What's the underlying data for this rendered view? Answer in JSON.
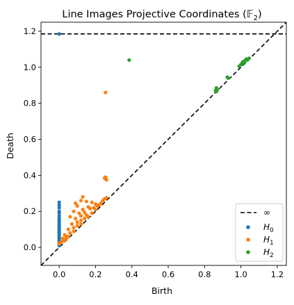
{
  "chart_data": {
    "type": "scatter",
    "title": "Line Images Projective Coordinates (ᵓf₂)",
    "title_parts": {
      "main": "Line Images Projective Coordinates (",
      "field_symbol": "𝔽",
      "field_subscript": "2",
      "close": ")"
    },
    "xlabel": "Birth",
    "ylabel": "Death",
    "xlim": [
      -0.1,
      1.25
    ],
    "ylim": [
      -0.1,
      1.25
    ],
    "xticks": [
      0.0,
      0.2,
      0.4,
      0.6,
      0.8,
      1.0,
      1.2
    ],
    "yticks": [
      0.0,
      0.2,
      0.4,
      0.6,
      0.8,
      1.0,
      1.2
    ],
    "xtick_labels": [
      "0.0",
      "0.2",
      "0.4",
      "0.6",
      "0.8",
      "1.0",
      "1.2"
    ],
    "ytick_labels": [
      "0.0",
      "0.2",
      "0.4",
      "0.6",
      "0.8",
      "1.0",
      "1.2"
    ],
    "grid": false,
    "legend_position": "lower-right",
    "infinity_line": {
      "label": "∞",
      "y": 1.185,
      "color": "#000000",
      "style": "dashed"
    },
    "diagonal_line": {
      "style": "dashed",
      "color": "#000000"
    },
    "series": [
      {
        "name": "H",
        "subscript": "0",
        "color": "#1f77b4",
        "points": [
          [
            0.0,
            1.185
          ],
          [
            0.0,
            0.25
          ],
          [
            0.0,
            0.235
          ],
          [
            0.0,
            0.22
          ],
          [
            0.0,
            0.2
          ],
          [
            0.0,
            0.19
          ],
          [
            0.0,
            0.175
          ],
          [
            0.0,
            0.16
          ],
          [
            0.0,
            0.15
          ],
          [
            0.0,
            0.14
          ],
          [
            0.0,
            0.13
          ],
          [
            0.0,
            0.12
          ],
          [
            0.0,
            0.11
          ],
          [
            0.0,
            0.1
          ],
          [
            0.0,
            0.09
          ],
          [
            0.0,
            0.08
          ],
          [
            0.0,
            0.07
          ],
          [
            0.0,
            0.06
          ],
          [
            0.0,
            0.05
          ],
          [
            0.0,
            0.04
          ],
          [
            0.0,
            0.03
          ],
          [
            0.0,
            0.02
          ],
          [
            0.0,
            0.01
          ]
        ]
      },
      {
        "name": "H",
        "subscript": "1",
        "color": "#ff7f0e",
        "points": [
          [
            0.255,
            0.86
          ],
          [
            0.255,
            0.39
          ],
          [
            0.255,
            0.38
          ],
          [
            0.26,
            0.375
          ],
          [
            0.25,
            0.385
          ],
          [
            0.13,
            0.28
          ],
          [
            0.12,
            0.26
          ],
          [
            0.15,
            0.255
          ],
          [
            0.18,
            0.25
          ],
          [
            0.09,
            0.245
          ],
          [
            0.1,
            0.23
          ],
          [
            0.16,
            0.225
          ],
          [
            0.2,
            0.24
          ],
          [
            0.22,
            0.235
          ],
          [
            0.24,
            0.26
          ],
          [
            0.25,
            0.27
          ],
          [
            0.26,
            0.275
          ],
          [
            0.08,
            0.2
          ],
          [
            0.11,
            0.19
          ],
          [
            0.13,
            0.21
          ],
          [
            0.14,
            0.195
          ],
          [
            0.17,
            0.215
          ],
          [
            0.19,
            0.22
          ],
          [
            0.21,
            0.23
          ],
          [
            0.23,
            0.245
          ],
          [
            0.06,
            0.17
          ],
          [
            0.09,
            0.16
          ],
          [
            0.12,
            0.175
          ],
          [
            0.15,
            0.18
          ],
          [
            0.07,
            0.13
          ],
          [
            0.1,
            0.14
          ],
          [
            0.12,
            0.15
          ],
          [
            0.14,
            0.16
          ],
          [
            0.16,
            0.17
          ],
          [
            0.18,
            0.19
          ],
          [
            0.2,
            0.21
          ],
          [
            0.05,
            0.1
          ],
          [
            0.08,
            0.11
          ],
          [
            0.1,
            0.12
          ],
          [
            0.12,
            0.13
          ],
          [
            0.03,
            0.07
          ],
          [
            0.06,
            0.08
          ],
          [
            0.08,
            0.09
          ],
          [
            0.02,
            0.05
          ],
          [
            0.04,
            0.06
          ],
          [
            0.03,
            0.04
          ],
          [
            0.05,
            0.06
          ],
          [
            0.01,
            0.03
          ],
          [
            0.02,
            0.035
          ],
          [
            0.0,
            0.02
          ],
          [
            0.04,
            0.05
          ]
        ]
      },
      {
        "name": "H",
        "subscript": "2",
        "color": "#2ca02c",
        "points": [
          [
            0.385,
            1.04
          ],
          [
            0.865,
            0.885
          ],
          [
            0.87,
            0.875
          ],
          [
            0.86,
            0.87
          ],
          [
            0.865,
            0.865
          ],
          [
            0.925,
            0.945
          ],
          [
            0.93,
            0.94
          ],
          [
            0.99,
            1.005
          ],
          [
            1.0,
            1.015
          ],
          [
            1.005,
            1.02
          ],
          [
            1.01,
            1.025
          ],
          [
            1.015,
            1.03
          ],
          [
            1.02,
            1.035
          ],
          [
            1.025,
            1.04
          ],
          [
            1.03,
            1.045
          ],
          [
            1.035,
            1.04
          ],
          [
            1.045,
            1.05
          ],
          [
            1.01,
            1.03
          ],
          [
            1.02,
            1.025
          ]
        ]
      }
    ]
  }
}
